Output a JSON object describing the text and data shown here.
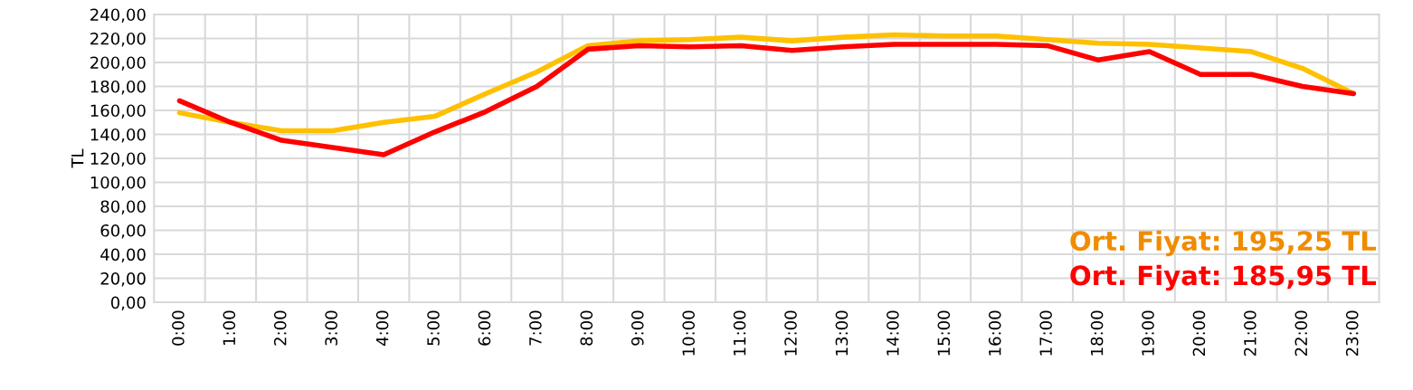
{
  "chart_data": {
    "type": "line",
    "ylabel": "TL",
    "categories": [
      "0:00",
      "1:00",
      "2:00",
      "3:00",
      "4:00",
      "5:00",
      "6:00",
      "7:00",
      "8:00",
      "9:00",
      "10:00",
      "11:00",
      "12:00",
      "13:00",
      "14:00",
      "15:00",
      "16:00",
      "17:00",
      "18:00",
      "19:00",
      "20:00",
      "21:00",
      "22:00",
      "23:00"
    ],
    "series": [
      {
        "color": "#ffc000",
        "values": [
          158,
          150,
          143,
          143,
          150,
          155,
          174,
          192,
          214,
          218,
          219,
          221,
          218,
          221,
          223,
          222,
          222,
          219,
          216,
          215,
          212,
          209,
          195,
          174
        ]
      },
      {
        "color": "#ff0000",
        "values": [
          168,
          150,
          135,
          129,
          123,
          142,
          159,
          180,
          211,
          214,
          213,
          214,
          210,
          213,
          215,
          215,
          215,
          214,
          202,
          209,
          190,
          190,
          180,
          174
        ]
      }
    ],
    "ylim": [
      0,
      240
    ],
    "yticks": [
      {
        "value": 0,
        "label": "0,00"
      },
      {
        "value": 20,
        "label": "20,00"
      },
      {
        "value": 40,
        "label": "40,00"
      },
      {
        "value": 60,
        "label": "60,00"
      },
      {
        "value": 80,
        "label": "80,00"
      },
      {
        "value": 100,
        "label": "100,00"
      },
      {
        "value": 120,
        "label": "120,00"
      },
      {
        "value": 140,
        "label": "140,00"
      },
      {
        "value": 160,
        "label": "160,00"
      },
      {
        "value": 180,
        "label": "180,00"
      },
      {
        "value": 200,
        "label": "200,00"
      },
      {
        "value": 220,
        "label": "220,00"
      },
      {
        "value": 240,
        "label": "240,00"
      }
    ],
    "grid": true,
    "marker": "none",
    "line_style": "solid",
    "annotations": [
      "Ort. Fiyat: 195,25 TL",
      "Ort. Fiyat: 185,95 TL"
    ]
  }
}
